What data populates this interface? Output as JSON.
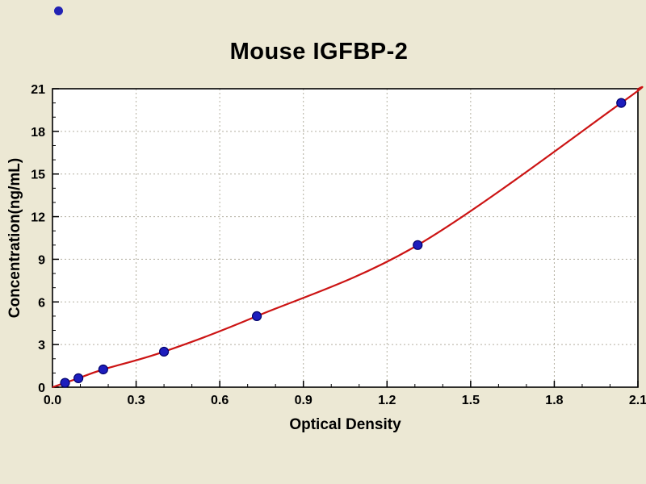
{
  "page": {
    "background_color": "#ece8d4",
    "plot_background_color": "#ffffff",
    "frame_color": "#000000",
    "grid_color": "#b3afa0"
  },
  "chart_data": {
    "type": "scatter",
    "title": "Mouse IGFBP-2",
    "xlabel": "Optical Density",
    "ylabel": "Concentration(ng/mL)",
    "xlim": [
      0.0,
      2.1
    ],
    "ylim": [
      0,
      21
    ],
    "xticks": [
      0.0,
      0.3,
      0.6,
      0.9,
      1.2,
      1.5,
      1.8,
      2.1
    ],
    "xtick_labels": [
      "0.0",
      "0.3",
      "0.6",
      "0.9",
      "1.2",
      "1.5",
      "1.8",
      "2.1"
    ],
    "yticks": [
      0,
      3,
      6,
      9,
      12,
      15,
      18,
      21
    ],
    "ytick_labels": [
      "0",
      "3",
      "6",
      "9",
      "12",
      "15",
      "18",
      "21"
    ],
    "x_minor_step": 0.1,
    "y_minor_step": 1,
    "grid": "dotted",
    "legend": "none",
    "series": [
      {
        "name": "standard-points",
        "marker_color": "#1d1dbd",
        "marker_edge_color": "#00006a",
        "points": [
          {
            "x": 0.045,
            "y": 0.31
          },
          {
            "x": 0.093,
            "y": 0.63
          },
          {
            "x": 0.182,
            "y": 1.25
          },
          {
            "x": 0.4,
            "y": 2.5
          },
          {
            "x": 0.733,
            "y": 5.0
          },
          {
            "x": 1.31,
            "y": 10.0
          },
          {
            "x": 2.04,
            "y": 20.0
          }
        ]
      }
    ],
    "fit_curve": {
      "name": "standard-curve-fit",
      "color": "#cc1414",
      "points": [
        {
          "x": 0.0,
          "y": 0.0
        },
        {
          "x": 0.045,
          "y": 0.31
        },
        {
          "x": 0.093,
          "y": 0.63
        },
        {
          "x": 0.182,
          "y": 1.25
        },
        {
          "x": 0.4,
          "y": 2.5
        },
        {
          "x": 0.733,
          "y": 5.0
        },
        {
          "x": 1.31,
          "y": 10.0
        },
        {
          "x": 2.04,
          "y": 20.0
        },
        {
          "x": 2.1,
          "y": 21.0
        }
      ]
    }
  }
}
